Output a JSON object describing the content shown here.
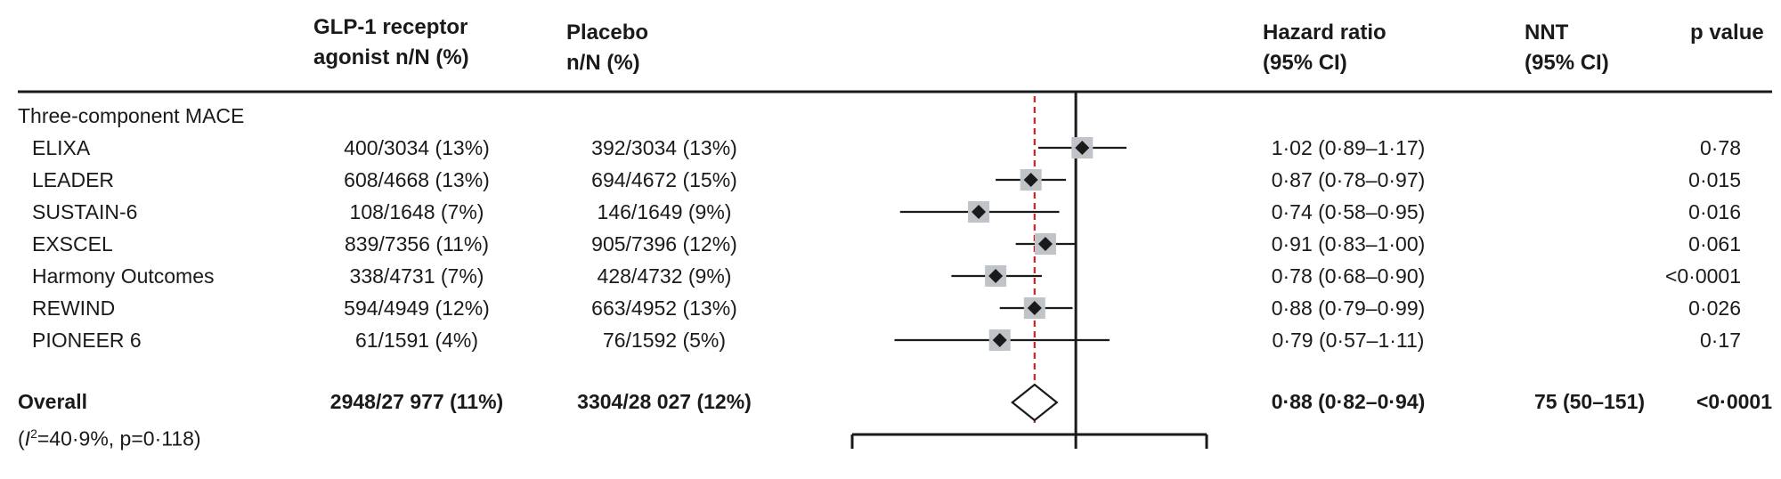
{
  "headers": {
    "glp1_line1": "GLP-1 receptor",
    "glp1_line2": "agonist n/N (%)",
    "placebo_line1": "Placebo",
    "placebo_line2": "n/N (%)",
    "hr_line1": "Hazard ratio",
    "hr_line2": "(95% CI)",
    "nnt_line1": "NNT",
    "nnt_line2": "(95% CI)",
    "p_line1": "p value"
  },
  "group_label": "Three-component MACE",
  "rows": [
    {
      "trial": "ELIXA",
      "glp1": "400/3034 (13%)",
      "placebo": "392/3034 (13%)",
      "hr_text": "1·02 (0·89–1·17)",
      "p": "0·78"
    },
    {
      "trial": "LEADER",
      "glp1": "608/4668 (13%)",
      "placebo": "694/4672 (15%)",
      "hr_text": "0·87 (0·78–0·97)",
      "p": "0·015"
    },
    {
      "trial": "SUSTAIN-6",
      "glp1": "108/1648 (7%)",
      "placebo": "146/1649 (9%)",
      "hr_text": "0·74 (0·58–0·95)",
      "p": "0·016"
    },
    {
      "trial": "EXSCEL",
      "glp1": "839/7356 (11%)",
      "placebo": "905/7396 (12%)",
      "hr_text": "0·91 (0·83–1·00)",
      "p": "0·061"
    },
    {
      "trial": "Harmony Outcomes",
      "glp1": "338/4731 (7%)",
      "placebo": "428/4732 (9%)",
      "hr_text": "0·78 (0·68–0·90)",
      "p": "<0·0001"
    },
    {
      "trial": "REWIND",
      "glp1": "594/4949 (12%)",
      "placebo": "663/4952 (13%)",
      "hr_text": "0·88 (0·79–0·99)",
      "p": "0·026"
    },
    {
      "trial": "PIONEER 6",
      "glp1": "61/1591 (4%)",
      "placebo": "76/1592 (5%)",
      "hr_text": "0·79 (0·57–1·11)",
      "p": "0·17"
    }
  ],
  "overall": {
    "label": "Overall",
    "het_i": "I",
    "het_sup": "2",
    "het_rest": "=40·9%, p=0·118)",
    "het_open": "(",
    "glp1": "2948/27 977 (11%)",
    "placebo": "3304/28 027 (12%)",
    "hr_text": "0·88 (0·82–0·94)",
    "nnt": "75 (50–151)",
    "p": "<0·0001"
  },
  "chart_data": {
    "type": "forest",
    "scale": "log",
    "null_value": 1.0,
    "reference_line": 0.88,
    "axis_range": [
      0.5,
      1.5
    ],
    "studies": [
      {
        "name": "ELIXA",
        "hr": 1.02,
        "lo": 0.89,
        "hi": 1.17
      },
      {
        "name": "LEADER",
        "hr": 0.87,
        "lo": 0.78,
        "hi": 0.97
      },
      {
        "name": "SUSTAIN-6",
        "hr": 0.74,
        "lo": 0.58,
        "hi": 0.95
      },
      {
        "name": "EXSCEL",
        "hr": 0.91,
        "lo": 0.83,
        "hi": 1.0
      },
      {
        "name": "Harmony Outcomes",
        "hr": 0.78,
        "lo": 0.68,
        "hi": 0.9
      },
      {
        "name": "REWIND",
        "hr": 0.88,
        "lo": 0.79,
        "hi": 0.99
      },
      {
        "name": "PIONEER 6",
        "hr": 0.79,
        "lo": 0.57,
        "hi": 1.11
      }
    ],
    "overall": {
      "hr": 0.88,
      "lo": 0.82,
      "hi": 0.94
    },
    "colors": {
      "box": "#c0c4c9",
      "marker": "#1a1a1a",
      "reference": "#d42020"
    }
  }
}
